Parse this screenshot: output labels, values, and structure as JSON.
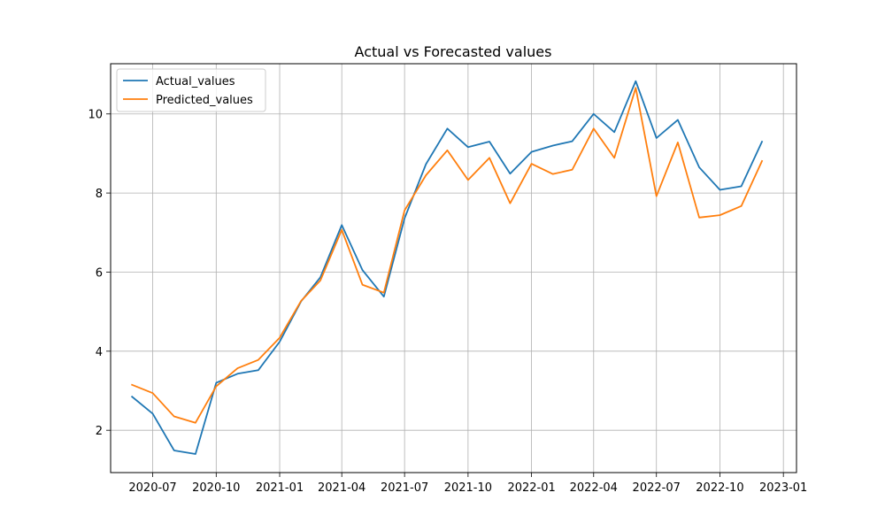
{
  "chart_data": {
    "type": "line",
    "title": "Actual vs Forecasted values",
    "xlabel": "",
    "ylabel": "",
    "x": [
      "2020-06-01",
      "2020-07-01",
      "2020-08-01",
      "2020-09-01",
      "2020-10-01",
      "2020-11-01",
      "2020-12-01",
      "2021-01-01",
      "2021-02-01",
      "2021-03-01",
      "2021-04-01",
      "2021-05-01",
      "2021-06-01",
      "2021-07-01",
      "2021-08-01",
      "2021-09-01",
      "2021-10-01",
      "2021-11-01",
      "2021-12-01",
      "2022-01-01",
      "2022-02-01",
      "2022-03-01",
      "2022-04-01",
      "2022-05-01",
      "2022-06-01",
      "2022-07-01",
      "2022-08-01",
      "2022-09-01",
      "2022-10-01",
      "2022-11-01",
      "2022-12-01"
    ],
    "xlim": [
      "2020-05-01",
      "2023-01-20"
    ],
    "ylim": [
      0.93,
      11.27
    ],
    "xticks": [
      {
        "date": "2020-07-01",
        "label": "2020-07"
      },
      {
        "date": "2020-10-01",
        "label": "2020-10"
      },
      {
        "date": "2021-01-01",
        "label": "2021-01"
      },
      {
        "date": "2021-04-01",
        "label": "2021-04"
      },
      {
        "date": "2021-07-01",
        "label": "2021-07"
      },
      {
        "date": "2021-10-01",
        "label": "2021-10"
      },
      {
        "date": "2022-01-01",
        "label": "2022-01"
      },
      {
        "date": "2022-04-01",
        "label": "2022-04"
      },
      {
        "date": "2022-07-01",
        "label": "2022-07"
      },
      {
        "date": "2022-10-01",
        "label": "2022-10"
      },
      {
        "date": "2023-01-01",
        "label": "2023-01"
      }
    ],
    "yticks": [
      {
        "value": 2,
        "label": "2"
      },
      {
        "value": 4,
        "label": "4"
      },
      {
        "value": 6,
        "label": "6"
      },
      {
        "value": 8,
        "label": "8"
      },
      {
        "value": 10,
        "label": "10"
      }
    ],
    "grid": true,
    "legend_position": "top-left",
    "series": [
      {
        "name": "Actual_values",
        "color": "#1f77b4",
        "values": [
          2.85,
          2.42,
          1.49,
          1.4,
          3.2,
          3.43,
          3.52,
          4.24,
          5.26,
          5.87,
          7.19,
          6.05,
          5.38,
          7.36,
          8.73,
          9.63,
          9.16,
          9.3,
          8.49,
          9.04,
          9.2,
          9.31,
          10.0,
          9.54,
          10.83,
          9.39,
          9.85,
          8.65,
          8.08,
          8.17,
          9.3
        ]
      },
      {
        "name": "Predicted_values",
        "color": "#ff7f0e",
        "values": [
          3.15,
          2.94,
          2.35,
          2.19,
          3.11,
          3.57,
          3.78,
          4.34,
          5.27,
          5.79,
          7.07,
          5.68,
          5.48,
          7.56,
          8.45,
          9.08,
          8.33,
          8.89,
          7.74,
          8.74,
          8.48,
          8.59,
          9.63,
          8.89,
          10.66,
          7.92,
          9.28,
          7.38,
          7.44,
          7.67,
          8.81
        ]
      }
    ]
  }
}
